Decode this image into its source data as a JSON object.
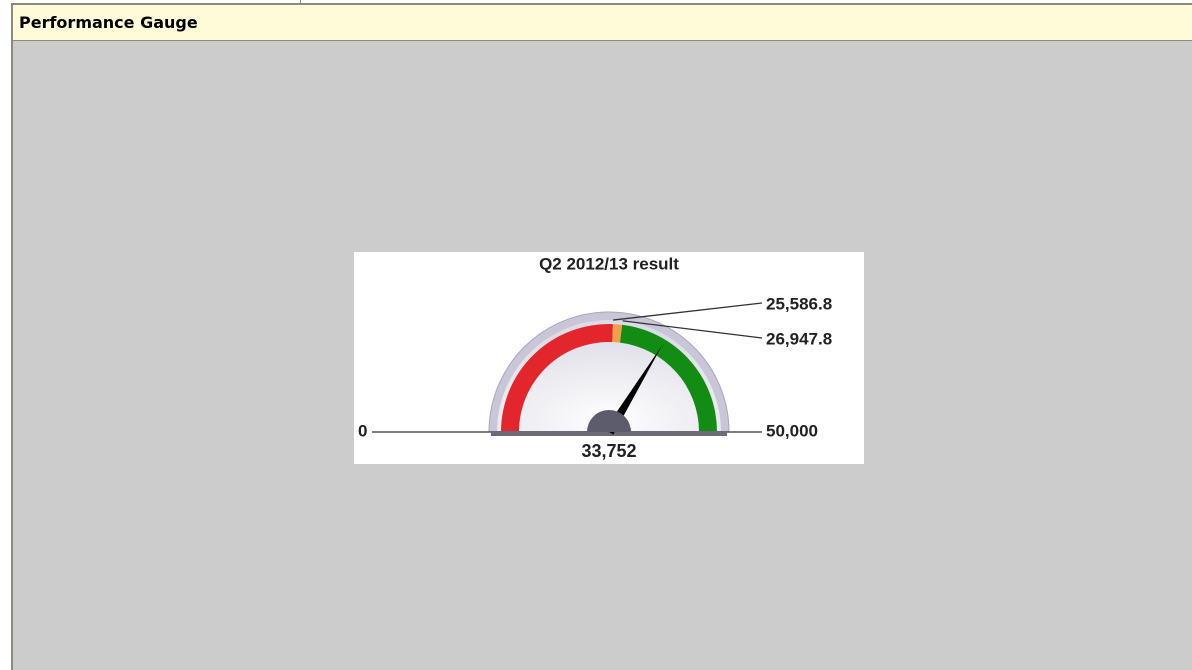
{
  "panel": {
    "title": "Performance Gauge"
  },
  "chart_data": {
    "type": "gauge",
    "title": "Q2 2012/13 result",
    "values": [
      33752
    ],
    "value_labels": [
      "33,752"
    ],
    "ylim": [
      0,
      50000
    ],
    "yticks": [
      0,
      {
        "value": 25586.8,
        "label": "25,586.8"
      },
      {
        "value": 26947.8,
        "label": "26,947.8"
      },
      {
        "value": 50000,
        "label": "50,000"
      }
    ],
    "band_colors": [
      "#e3262b",
      "#f0a04a",
      "#138c13"
    ],
    "needle_color": "#000000"
  }
}
